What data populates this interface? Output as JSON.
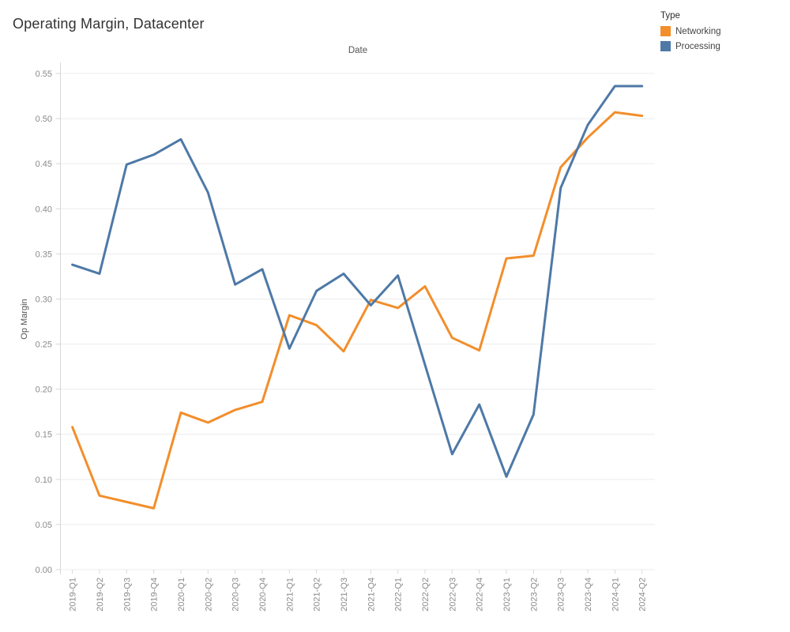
{
  "title": "Operating Margin, Datacenter",
  "legend": {
    "title": "Type"
  },
  "chart_data": {
    "type": "line",
    "title": "Operating Margin, Datacenter",
    "xlabel": "Date",
    "ylabel": "Op Margin",
    "x_categories": [
      "2019-Q1",
      "2019-Q2",
      "2019-Q3",
      "2019-Q4",
      "2020-Q1",
      "2020-Q2",
      "2020-Q3",
      "2020-Q4",
      "2021-Q1",
      "2021-Q2",
      "2021-Q3",
      "2021-Q4",
      "2022-Q1",
      "2022-Q2",
      "2022-Q3",
      "2022-Q4",
      "2023-Q1",
      "2023-Q2",
      "2023-Q3",
      "2023-Q4",
      "2024-Q1",
      "2024-Q2"
    ],
    "series": [
      {
        "name": "Networking",
        "color": "#f28e2b",
        "values": [
          0.158,
          0.082,
          0.075,
          0.068,
          0.174,
          0.163,
          0.177,
          0.186,
          0.282,
          0.271,
          0.242,
          0.299,
          0.29,
          0.314,
          0.257,
          0.243,
          0.345,
          0.348,
          0.446,
          0.479,
          0.507,
          0.503
        ]
      },
      {
        "name": "Processing",
        "color": "#4e79a7",
        "values": [
          0.338,
          0.328,
          0.449,
          0.46,
          0.477,
          0.418,
          0.316,
          0.333,
          0.245,
          0.309,
          0.328,
          0.293,
          0.326,
          0.227,
          0.128,
          0.183,
          0.103,
          0.172,
          0.423,
          0.493,
          0.536,
          0.536
        ]
      }
    ],
    "ylim": [
      0,
      0.55
    ],
    "ytick_step": 0.05,
    "ytick_format": "0.00",
    "grid": "horizontal",
    "legend_position": "top-right"
  }
}
